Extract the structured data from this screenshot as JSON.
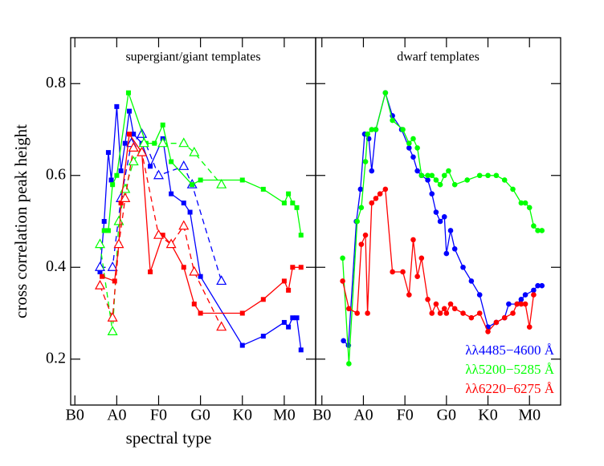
{
  "chart_data": [
    {
      "type": "line",
      "title": "supergiant/giant templates",
      "ylabel": "cross correlation peak height",
      "xlabel": "spectral type",
      "xlim": [
        -1,
        57.5
      ],
      "ylim": [
        0.1,
        0.9
      ],
      "xticks": [
        {
          "value": 0,
          "label": "B0"
        },
        {
          "value": 10,
          "label": "A0"
        },
        {
          "value": 20,
          "label": "F0"
        },
        {
          "value": 30,
          "label": "G0"
        },
        {
          "value": 40,
          "label": "K0"
        },
        {
          "value": 50,
          "label": "M0"
        }
      ],
      "yticks": [
        0.2,
        0.4,
        0.6,
        0.8
      ],
      "series": [
        {
          "color": "#0000ff",
          "marker": "square",
          "dashed": false,
          "x": [
            6,
            7,
            8,
            8.7,
            10,
            11,
            12,
            13,
            14,
            16,
            18,
            21,
            23,
            26,
            27.5,
            30,
            40,
            45,
            50,
            51,
            52,
            53,
            54
          ],
          "values": [
            0.39,
            0.5,
            0.65,
            0.59,
            0.75,
            0.61,
            0.67,
            0.74,
            0.69,
            0.67,
            0.62,
            0.68,
            0.56,
            0.54,
            0.52,
            0.38,
            0.23,
            0.25,
            0.28,
            0.27,
            0.29,
            0.29,
            0.22
          ]
        },
        {
          "color": "#0000ff",
          "marker": "triangle",
          "dashed": true,
          "x": [
            6,
            9,
            11,
            13.5,
            16,
            20,
            26,
            28,
            35
          ],
          "values": [
            0.4,
            0.4,
            0.55,
            0.67,
            0.69,
            0.6,
            0.62,
            0.58,
            0.37
          ]
        },
        {
          "color": "#00ff00",
          "marker": "square",
          "dashed": false,
          "x": [
            7,
            8,
            9,
            10,
            12.8,
            17,
            19,
            21,
            23,
            28,
            30,
            40,
            45,
            50,
            51,
            52,
            53,
            54
          ],
          "values": [
            0.48,
            0.48,
            0.58,
            0.6,
            0.78,
            0.67,
            0.67,
            0.71,
            0.63,
            0.58,
            0.59,
            0.59,
            0.57,
            0.54,
            0.56,
            0.54,
            0.53,
            0.47
          ]
        },
        {
          "color": "#00ff00",
          "marker": "triangle",
          "dashed": true,
          "x": [
            6,
            9,
            10.5,
            12,
            14,
            16.5,
            21,
            26,
            28.5,
            35
          ],
          "values": [
            0.45,
            0.26,
            0.5,
            0.57,
            0.63,
            0.67,
            0.67,
            0.67,
            0.65,
            0.58
          ]
        },
        {
          "color": "#ff0000",
          "marker": "square",
          "dashed": false,
          "x": [
            6.5,
            9.5,
            10.5,
            11,
            13,
            16,
            18,
            21,
            23,
            26,
            28.5,
            30,
            40,
            45,
            50,
            51,
            52,
            54
          ],
          "values": [
            0.38,
            0.37,
            0.45,
            0.54,
            0.69,
            0.65,
            0.39,
            0.47,
            0.45,
            0.4,
            0.32,
            0.3,
            0.3,
            0.33,
            0.37,
            0.35,
            0.4,
            0.4
          ]
        },
        {
          "color": "#ff0000",
          "marker": "triangle",
          "dashed": true,
          "x": [
            6,
            9,
            10.5,
            12,
            14,
            16,
            20,
            23,
            26,
            28.5,
            35
          ],
          "values": [
            0.36,
            0.29,
            0.45,
            0.55,
            0.66,
            0.65,
            0.47,
            0.45,
            0.49,
            0.39,
            0.27
          ]
        }
      ]
    },
    {
      "type": "line",
      "title": "dwarf templates",
      "legend": "lower right",
      "xlim": [
        -1.5,
        57.5
      ],
      "ylim": [
        0.1,
        0.9
      ],
      "xticks": [
        {
          "value": 0,
          "label": "B0"
        },
        {
          "value": 10,
          "label": "A0"
        },
        {
          "value": 20,
          "label": "F0"
        },
        {
          "value": 30,
          "label": "G0"
        },
        {
          "value": 40,
          "label": "K0"
        },
        {
          "value": 50,
          "label": "M0"
        }
      ],
      "yticks": [
        0.2,
        0.4,
        0.6,
        0.8
      ],
      "series": [
        {
          "name": "λλ4485−4600 Å",
          "color": "#0000ff",
          "marker": "circle",
          "dashed": false,
          "x": [
            5.2,
            6.4,
            8.3,
            9.3,
            10.3,
            11.3,
            12,
            13,
            15.3,
            17,
            19.2,
            21,
            22,
            23,
            24,
            25.5,
            26.5,
            27.5,
            28.5,
            29.5,
            30,
            31,
            32,
            34,
            36,
            38,
            40,
            42,
            44,
            45,
            47,
            48,
            49,
            51,
            52,
            53
          ],
          "values": [
            0.24,
            0.23,
            0.5,
            0.57,
            0.69,
            0.68,
            0.61,
            0.7,
            0.78,
            0.73,
            0.7,
            0.66,
            0.64,
            0.61,
            0.6,
            0.59,
            0.56,
            0.52,
            0.5,
            0.51,
            0.43,
            0.48,
            0.44,
            0.4,
            0.37,
            0.34,
            0.27,
            0.28,
            0.29,
            0.32,
            0.32,
            0.33,
            0.34,
            0.35,
            0.36,
            0.36
          ]
        },
        {
          "name": "λλ5200−5285 Å",
          "color": "#00ff00",
          "marker": "circle",
          "dashed": false,
          "x": [
            5,
            6.5,
            8.5,
            9.5,
            10.5,
            11,
            12,
            13,
            15.3,
            17,
            19.5,
            21,
            22,
            23,
            24,
            25.5,
            26.5,
            27.5,
            28.5,
            29.5,
            30.5,
            32,
            35,
            38,
            40,
            42,
            44,
            46,
            48,
            49,
            50,
            51,
            52,
            53
          ],
          "values": [
            0.42,
            0.19,
            0.5,
            0.53,
            0.63,
            0.69,
            0.7,
            0.7,
            0.78,
            0.72,
            0.7,
            0.67,
            0.68,
            0.66,
            0.6,
            0.6,
            0.6,
            0.59,
            0.58,
            0.6,
            0.61,
            0.58,
            0.59,
            0.6,
            0.6,
            0.6,
            0.59,
            0.57,
            0.54,
            0.54,
            0.53,
            0.49,
            0.48,
            0.48
          ]
        },
        {
          "name": "λλ6220−6275 Å",
          "color": "#ff0000",
          "marker": "circle",
          "dashed": false,
          "x": [
            5,
            6.5,
            8.5,
            9.5,
            10.5,
            11,
            12,
            13,
            14,
            15.3,
            17,
            19.5,
            21,
            22,
            23,
            24,
            25.5,
            26.5,
            27.5,
            28.5,
            29.5,
            30,
            31,
            32,
            34,
            36,
            38,
            40,
            42,
            44,
            46,
            47,
            48,
            49,
            50,
            51
          ],
          "values": [
            0.37,
            0.31,
            0.3,
            0.45,
            0.47,
            0.3,
            0.54,
            0.55,
            0.56,
            0.57,
            0.39,
            0.39,
            0.34,
            0.46,
            0.38,
            0.42,
            0.33,
            0.3,
            0.32,
            0.3,
            0.31,
            0.3,
            0.32,
            0.31,
            0.3,
            0.29,
            0.3,
            0.26,
            0.28,
            0.29,
            0.3,
            0.32,
            0.32,
            0.32,
            0.27,
            0.34
          ]
        }
      ]
    }
  ]
}
